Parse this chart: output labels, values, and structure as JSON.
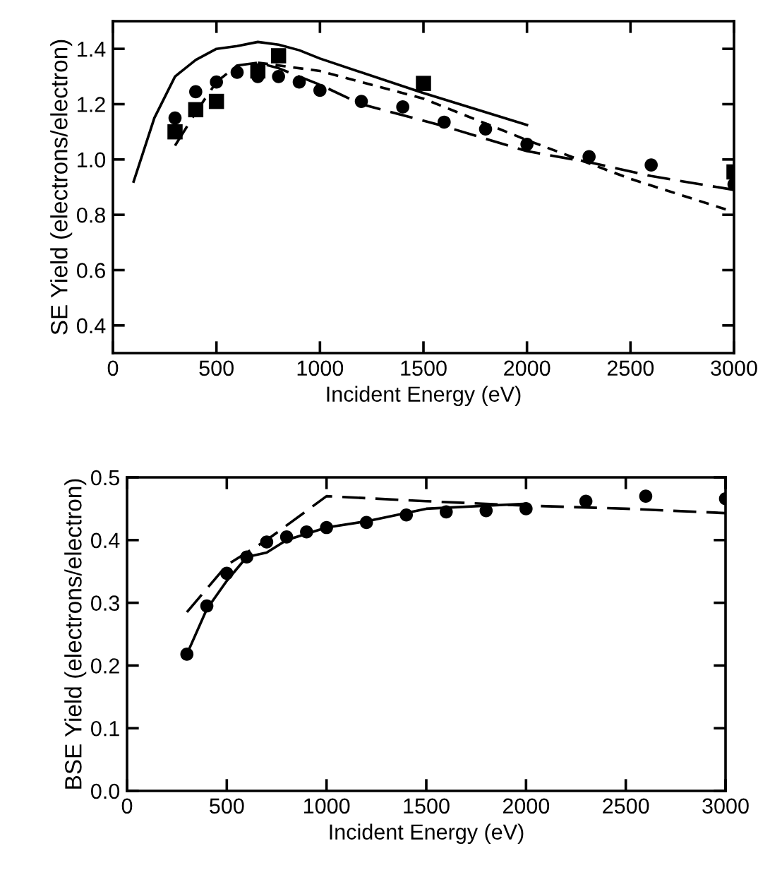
{
  "chart_data": [
    {
      "type": "line",
      "xlabel": "Incident Energy (eV)",
      "ylabel": "SE Yield (electrons/electron)",
      "xlim": [
        0,
        3000
      ],
      "xticks": [
        0,
        500,
        1000,
        1500,
        2000,
        2500,
        3000
      ],
      "ylim": [
        0.3,
        1.5
      ],
      "yticks": [
        0.4,
        0.6,
        0.8,
        {
          "value": 1.0,
          "label": "1.0"
        },
        1.2,
        1.4
      ],
      "grid": false,
      "legend": false,
      "series": [
        {
          "color": "#000000",
          "line_style": "solid",
          "marker": "none",
          "x": [
            100,
            200,
            300,
            400,
            500,
            600,
            700,
            800,
            900,
            1000,
            1500,
            2000
          ],
          "values": [
            0.92,
            1.15,
            1.3,
            1.36,
            1.4,
            1.41,
            1.425,
            1.415,
            1.395,
            1.365,
            1.24,
            1.125
          ]
        },
        {
          "color": "#000000",
          "line_style": "dotted",
          "marker": "none",
          "x": [
            700,
            1000,
            1500,
            2000,
            2500,
            3000
          ],
          "values": [
            1.35,
            1.32,
            1.22,
            1.07,
            0.93,
            0.81
          ]
        },
        {
          "color": "#000000",
          "line_style": "dashed",
          "marker": "none",
          "x": [
            300,
            400,
            500,
            600,
            700,
            800,
            1000,
            1200,
            1600,
            2000,
            2300,
            2600,
            3000
          ],
          "values": [
            1.05,
            1.17,
            1.28,
            1.34,
            1.35,
            1.33,
            1.27,
            1.2,
            1.12,
            1.03,
            0.99,
            0.94,
            0.89
          ]
        },
        {
          "type": "scatter",
          "color": "#000000",
          "marker": "circle",
          "x": [
            300,
            400,
            500,
            600,
            700,
            800,
            900,
            1000,
            1200,
            1400,
            1600,
            1800,
            2000,
            2300,
            2600,
            3000
          ],
          "values": [
            1.15,
            1.245,
            1.28,
            1.315,
            1.3,
            1.3,
            1.28,
            1.25,
            1.21,
            1.19,
            1.135,
            1.11,
            1.055,
            1.01,
            0.98,
            0.91
          ]
        },
        {
          "type": "scatter",
          "color": "#000000",
          "marker": "square",
          "x": [
            300,
            400,
            500,
            700,
            800,
            1500,
            3000
          ],
          "values": [
            1.1,
            1.18,
            1.21,
            1.32,
            1.375,
            1.275,
            0.955
          ]
        }
      ]
    },
    {
      "type": "line",
      "xlabel": "Incident Energy (eV)",
      "ylabel": "BSE Yield (electrons/electron)",
      "xlim": [
        0,
        3000
      ],
      "xticks": [
        0,
        500,
        1000,
        1500,
        2000,
        2500,
        3000
      ],
      "ylim": [
        0,
        0.5
      ],
      "yticks": [
        {
          "value": 0,
          "label": "0.0"
        },
        0.1,
        0.2,
        0.3,
        0.4,
        0.5
      ],
      "grid": false,
      "legend": false,
      "series": [
        {
          "color": "#000000",
          "line_style": "solid",
          "marker": "none",
          "x": [
            300,
            400,
            500,
            600,
            700,
            800,
            1000,
            1200,
            1500,
            2000
          ],
          "values": [
            0.218,
            0.29,
            0.335,
            0.373,
            0.38,
            0.4,
            0.42,
            0.43,
            0.45,
            0.458
          ]
        },
        {
          "color": "#000000",
          "line_style": "dashed",
          "marker": "none",
          "x": [
            300,
            500,
            700,
            1000,
            1500,
            2000,
            2500,
            3000
          ],
          "values": [
            0.285,
            0.36,
            0.4,
            0.47,
            0.462,
            0.455,
            0.45,
            0.443
          ]
        },
        {
          "type": "scatter",
          "color": "#000000",
          "marker": "circle",
          "x": [
            300,
            400,
            500,
            600,
            700,
            800,
            900,
            1000,
            1200,
            1400,
            1600,
            1800,
            2000,
            2300,
            2600,
            3000
          ],
          "values": [
            0.218,
            0.295,
            0.347,
            0.373,
            0.397,
            0.405,
            0.413,
            0.42,
            0.428,
            0.44,
            0.445,
            0.447,
            0.45,
            0.462,
            0.47,
            0.466
          ]
        }
      ]
    }
  ]
}
